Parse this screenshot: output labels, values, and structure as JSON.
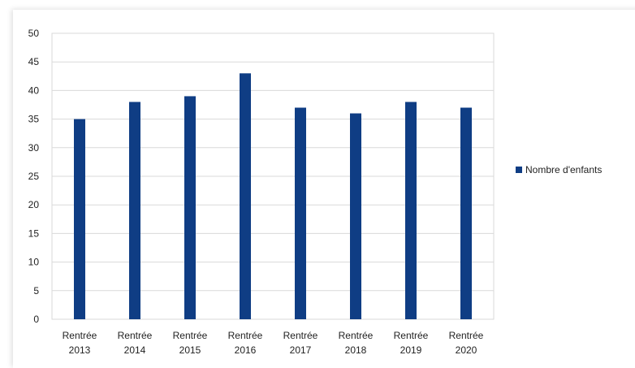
{
  "chart_data": {
    "type": "bar",
    "categories": [
      [
        "Rentrée",
        "2013"
      ],
      [
        "Rentrée",
        "2014"
      ],
      [
        "Rentrée",
        "2015"
      ],
      [
        "Rentrée",
        "2016"
      ],
      [
        "Rentrée",
        "2017"
      ],
      [
        "Rentrée",
        "2018"
      ],
      [
        "Rentrée",
        "2019"
      ],
      [
        "Rentrée",
        "2020"
      ]
    ],
    "series": [
      {
        "name": "Nombre d'enfants",
        "values": [
          35,
          38,
          39,
          43,
          37,
          36,
          38,
          37
        ],
        "color": "#0f3d84"
      }
    ],
    "ylim": [
      0,
      50
    ],
    "yticks": [
      0,
      5,
      10,
      15,
      20,
      25,
      30,
      35,
      40,
      45,
      50
    ],
    "grid": true,
    "legend_position": "right"
  }
}
